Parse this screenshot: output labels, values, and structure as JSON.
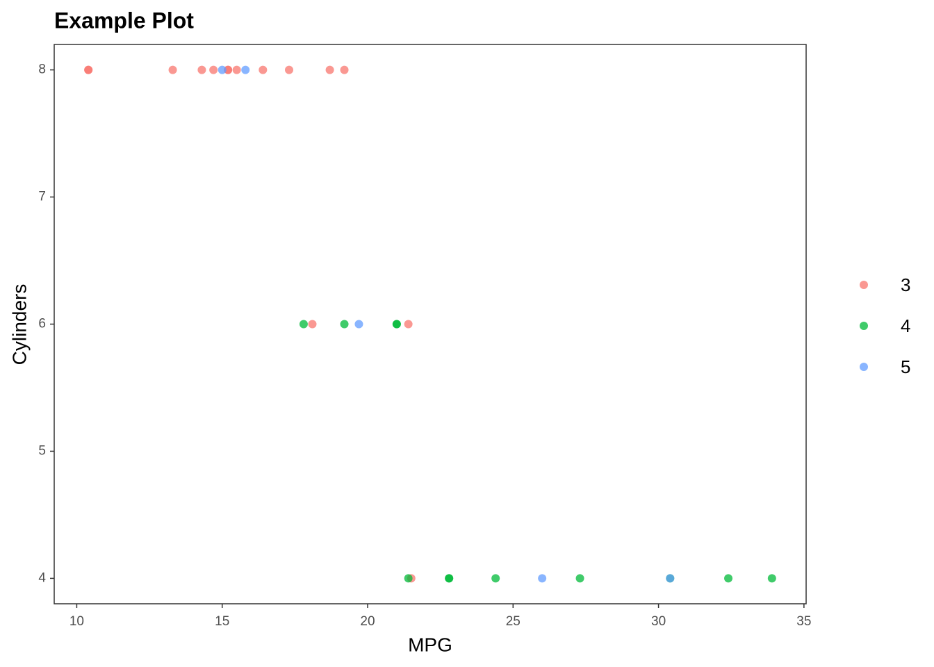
{
  "chart_data": {
    "type": "scatter",
    "title": "Example Plot",
    "x_label": "MPG",
    "y_label": "Cylinders",
    "xlim": [
      9.225,
      35.075
    ],
    "ylim": [
      3.8,
      8.2
    ],
    "xticks": [
      10,
      15,
      20,
      25,
      30,
      35
    ],
    "yticks": [
      4,
      5,
      6,
      7,
      8
    ],
    "grid": false,
    "legend_position": "right",
    "series": [
      {
        "name": "3",
        "color": "#F8766D",
        "x": [
          21.4,
          18.7,
          18.1,
          14.3,
          16.4,
          17.3,
          15.2,
          10.4,
          10.4,
          14.7,
          21.5,
          15.5,
          15.2,
          13.3,
          19.2
        ],
        "values": [
          6,
          8,
          6,
          8,
          8,
          8,
          8,
          8,
          8,
          8,
          4,
          8,
          8,
          8,
          8
        ]
      },
      {
        "name": "4",
        "color": "#00BA38",
        "x": [
          21.0,
          21.0,
          22.8,
          24.4,
          22.8,
          19.2,
          17.8,
          32.4,
          30.4,
          33.9,
          27.3,
          21.4
        ],
        "values": [
          6,
          6,
          4,
          4,
          4,
          6,
          6,
          4,
          4,
          4,
          4,
          4
        ]
      },
      {
        "name": "5",
        "color": "#619CFF",
        "x": [
          26.0,
          30.4,
          15.8,
          19.7,
          15.0
        ],
        "values": [
          4,
          4,
          8,
          6,
          8
        ]
      }
    ]
  }
}
